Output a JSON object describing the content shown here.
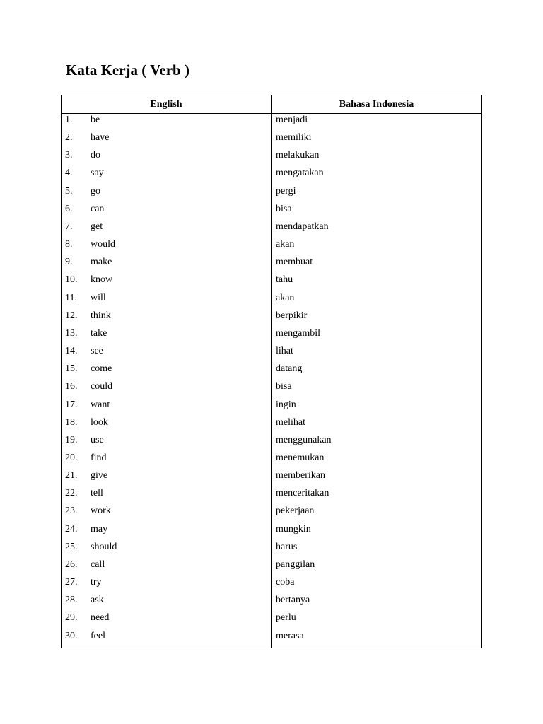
{
  "title": "Kata Kerja ( Verb )",
  "table": {
    "headers": [
      "English",
      "Bahasa Indonesia"
    ],
    "rows": [
      [
        "1.",
        "be",
        "menjadi"
      ],
      [
        "2.",
        "have",
        "memiliki"
      ],
      [
        "3.",
        "do",
        "melakukan"
      ],
      [
        "4.",
        "say",
        "mengatakan"
      ],
      [
        "5.",
        "go",
        "pergi"
      ],
      [
        "6.",
        "can",
        "bisa"
      ],
      [
        "7.",
        "get",
        "mendapatkan"
      ],
      [
        "8.",
        "would",
        "akan"
      ],
      [
        "9.",
        "make",
        "membuat"
      ],
      [
        "10.",
        "know",
        "tahu"
      ],
      [
        "11.",
        "will",
        "akan"
      ],
      [
        "12.",
        "think",
        "berpikir"
      ],
      [
        "13.",
        "take",
        "mengambil"
      ],
      [
        "14.",
        "see",
        "lihat"
      ],
      [
        "15.",
        "come",
        "datang"
      ],
      [
        "16.",
        "could",
        "bisa"
      ],
      [
        "17.",
        "want",
        "ingin"
      ],
      [
        "18.",
        "look",
        "melihat"
      ],
      [
        "19.",
        "use",
        "menggunakan"
      ],
      [
        "20.",
        "find",
        "menemukan"
      ],
      [
        "21.",
        "give",
        "memberikan"
      ],
      [
        "22.",
        "tell",
        "menceritakan"
      ],
      [
        "23.",
        "work",
        "pekerjaan"
      ],
      [
        "24.",
        "may",
        "mungkin"
      ],
      [
        "25.",
        "should",
        "harus"
      ],
      [
        "26.",
        "call",
        "panggilan"
      ],
      [
        "27.",
        "try",
        "coba"
      ],
      [
        "28.",
        "ask",
        "bertanya"
      ],
      [
        "29.",
        "need",
        "perlu"
      ],
      [
        "30.",
        "feel",
        "merasa"
      ]
    ]
  }
}
